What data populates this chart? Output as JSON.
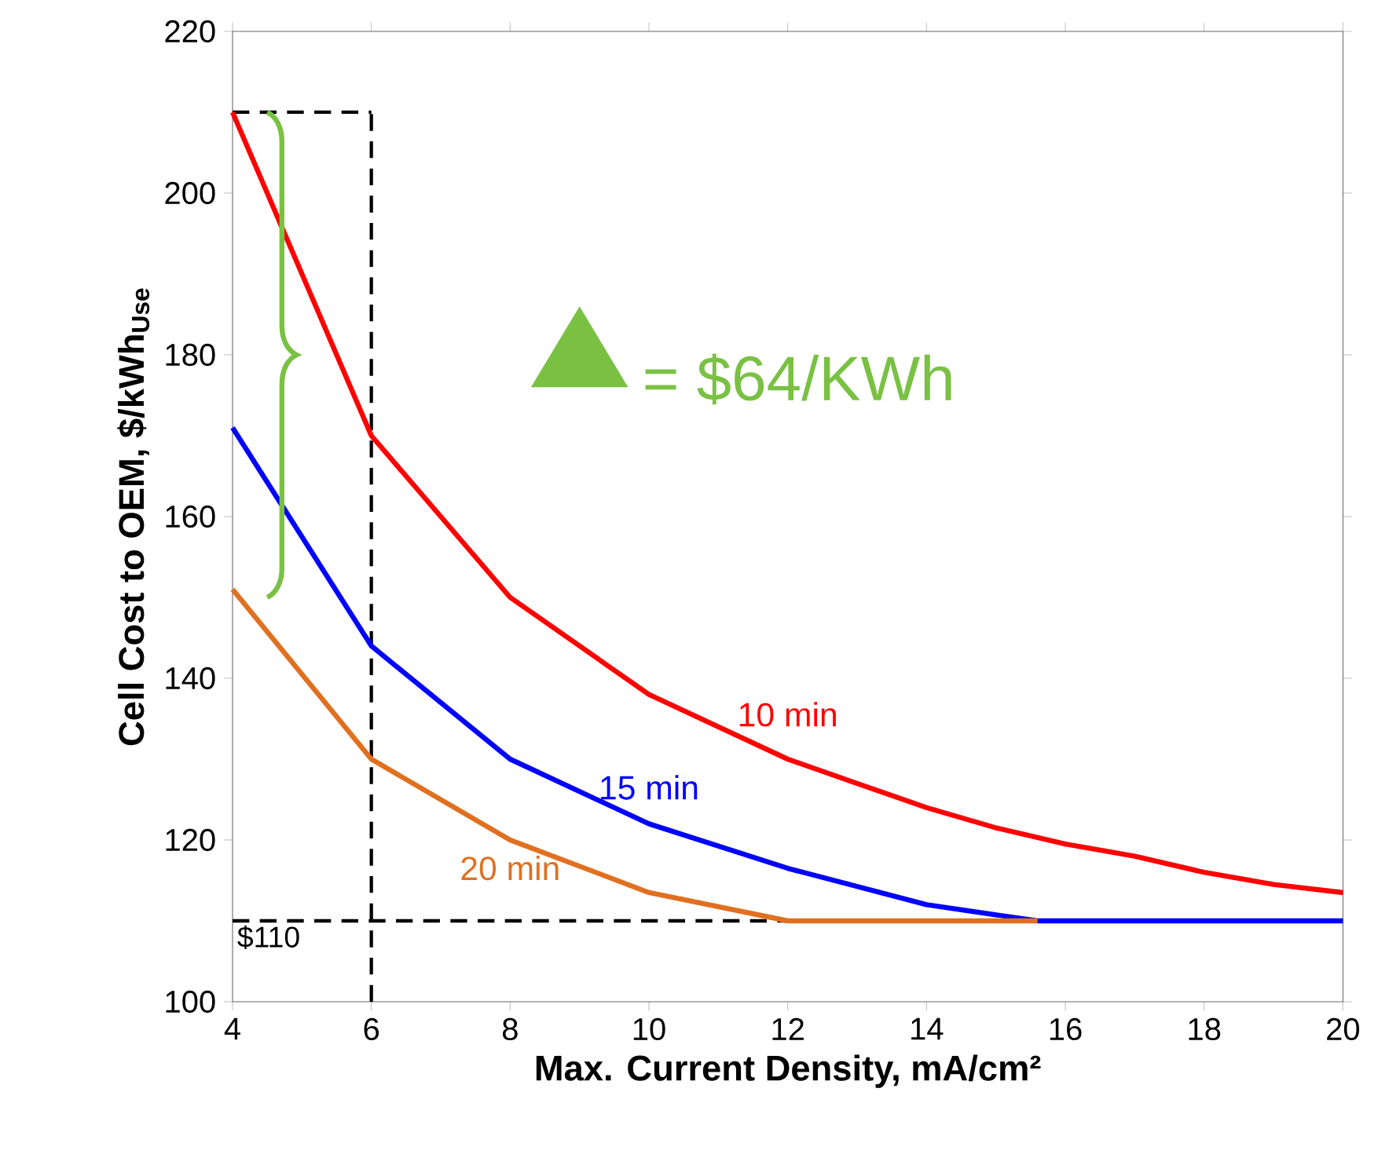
{
  "chart_data": {
    "type": "line",
    "xlabel": "Max. Current Density, mA/cm²",
    "ylabel": "Cell Cost to OEM, $/kWh$_{Use}$",
    "xlim": [
      4,
      20
    ],
    "ylim": [
      100,
      220
    ],
    "xticks": [
      4,
      6,
      8,
      10,
      12,
      14,
      16,
      18,
      20
    ],
    "yticks": [
      100,
      120,
      140,
      160,
      180,
      200,
      220
    ],
    "grid": false,
    "marker": "none",
    "line_style": "solid",
    "series": [
      {
        "name": "10 min",
        "color": "#ff0000",
        "x": [
          4,
          6,
          8,
          10,
          12,
          13,
          14,
          15,
          16,
          17,
          18,
          19,
          20
        ],
        "values": [
          210,
          170,
          150,
          138,
          130,
          127,
          124,
          121.5,
          119.5,
          118,
          116,
          114.5,
          113.5
        ]
      },
      {
        "name": "15 min",
        "color": "#0000ff",
        "x": [
          4,
          6,
          8,
          10,
          12,
          14,
          15.6,
          20
        ],
        "values": [
          171,
          144,
          130,
          122,
          116.5,
          112,
          110,
          110
        ]
      },
      {
        "name": "20 min",
        "color": "#e07020",
        "x": [
          4,
          6,
          8,
          10,
          12,
          15.6
        ],
        "values": [
          151,
          130,
          120,
          113.5,
          110,
          110
        ]
      }
    ],
    "ref_lines": [
      {
        "axis": "x",
        "value": 6,
        "line_style": "dashed",
        "color": "#000000"
      },
      {
        "axis": "y",
        "value": 210,
        "line_style": "dashed",
        "color": "#000000"
      },
      {
        "axis": "y",
        "value": 110,
        "label": "$110",
        "line_style": "dashed",
        "color": "#000000"
      }
    ],
    "annotations": [
      "= $64/KWh"
    ]
  }
}
